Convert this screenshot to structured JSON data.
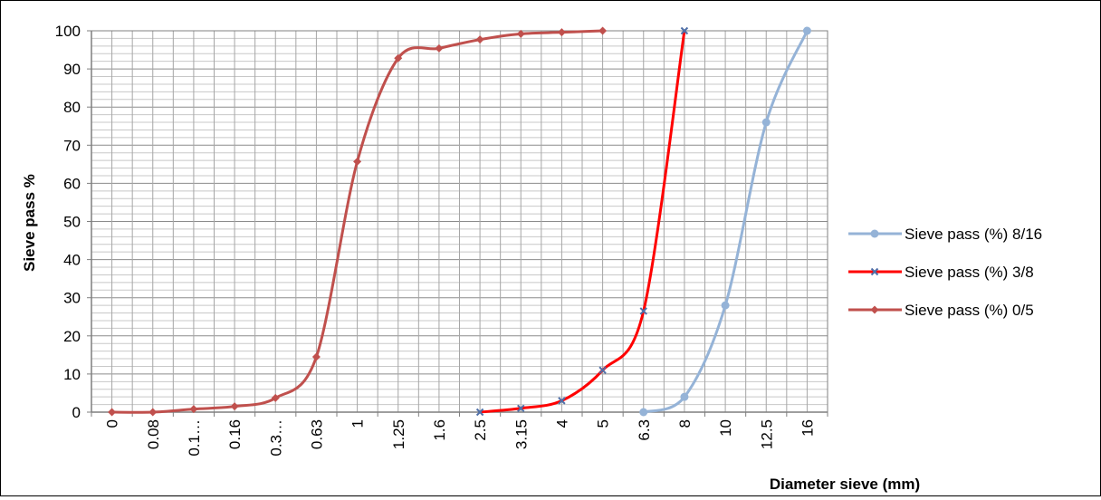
{
  "chart_data": {
    "type": "line",
    "xlabel": "Diameter sieve (mm)",
    "ylabel": "Sieve pass %",
    "ylim": [
      0,
      100
    ],
    "yticks": [
      0,
      10,
      20,
      30,
      40,
      50,
      60,
      70,
      80,
      90,
      100
    ],
    "categories": [
      "0",
      "0.08",
      "0.1…",
      "0.16",
      "0.3…",
      "0.63",
      "1",
      "1.25",
      "1.6",
      "2.5",
      "3.15",
      "4",
      "5",
      "6.3",
      "8",
      "10",
      "12.5",
      "16"
    ],
    "grid": true,
    "legend_position": "right",
    "series": [
      {
        "name": "Sieve pass (%) 8/16",
        "color": "#95b3d7",
        "marker": "circle",
        "values": [
          null,
          null,
          null,
          null,
          null,
          null,
          null,
          null,
          null,
          null,
          null,
          null,
          null,
          0,
          4,
          28,
          76,
          100
        ]
      },
      {
        "name": "Sieve pass (%) 3/8",
        "color": "#ff0000",
        "marker": "x",
        "marker_color": "#4f6fa8",
        "values": [
          null,
          null,
          null,
          null,
          null,
          null,
          null,
          null,
          null,
          0,
          1,
          3,
          11,
          26.5,
          100,
          null,
          null,
          null
        ]
      },
      {
        "name": "Sieve pass (%) 0/5",
        "color": "#c0504d",
        "marker": "diamond",
        "values": [
          0,
          0,
          0.8,
          1.5,
          3.7,
          14.5,
          65.7,
          92.8,
          95.4,
          97.7,
          99.2,
          99.6,
          100,
          null,
          null,
          null,
          null,
          null
        ]
      }
    ]
  }
}
